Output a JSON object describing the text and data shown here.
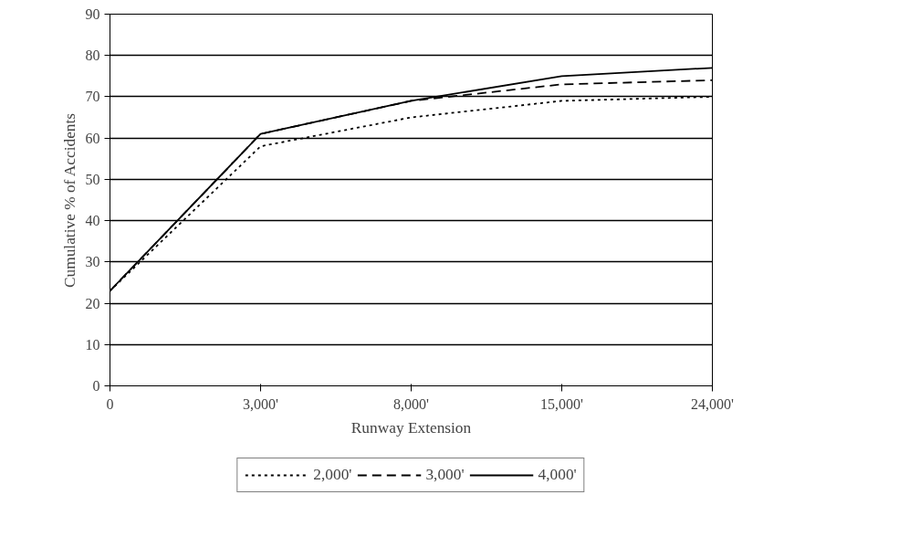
{
  "chart_data": {
    "type": "line",
    "xlabel": "Runway Extension",
    "ylabel": "Cumulative % of Accidents",
    "categories": [
      "0",
      "3,000'",
      "8,000'",
      "15,000'",
      "24,000'"
    ],
    "series": [
      {
        "name": "2,000'",
        "color": "#000000",
        "line_style": "dotted",
        "values": [
          23,
          58,
          65,
          69,
          70
        ]
      },
      {
        "name": "3,000'",
        "color": "#000000",
        "line_style": "dashed",
        "values": [
          23,
          61,
          69,
          73,
          74
        ]
      },
      {
        "name": "4,000'",
        "color": "#000000",
        "line_style": "solid",
        "values": [
          23,
          61,
          69,
          75,
          77
        ]
      }
    ],
    "ylim": [
      0,
      90
    ],
    "yticks": [
      0,
      10,
      20,
      30,
      40,
      50,
      60,
      70,
      80,
      90
    ],
    "grid": "y",
    "legend": "bottom",
    "marker": "none"
  }
}
